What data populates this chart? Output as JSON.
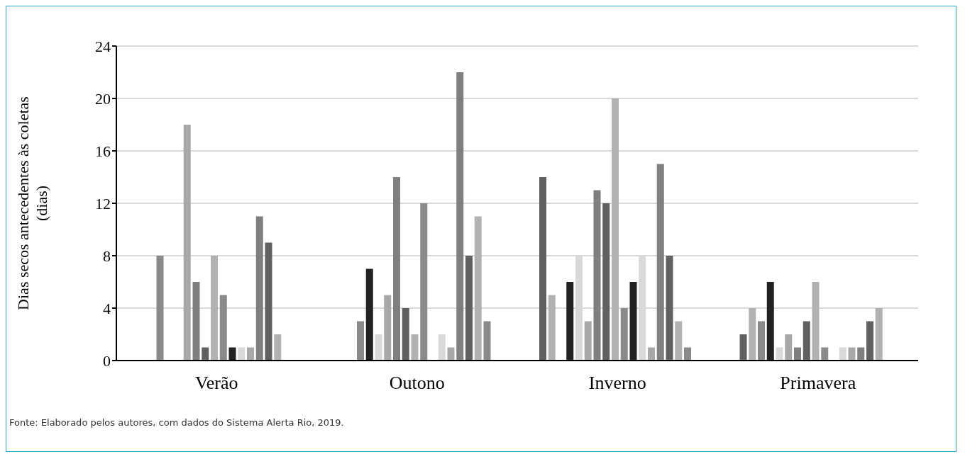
{
  "chart_data": {
    "type": "bar",
    "ylabel": "Dias secos antecedentes às coletas (dias)",
    "categories": [
      "Verão",
      "Outono",
      "Inverno",
      "Primavera"
    ],
    "series": [
      {
        "color": "#606060",
        "values": [
          null,
          null,
          14,
          2
        ]
      },
      {
        "color": "#b2b2b2",
        "values": [
          null,
          null,
          5,
          4
        ]
      },
      {
        "color": "#8a8a8a",
        "values": [
          8,
          3,
          null,
          3
        ]
      },
      {
        "color": "#222222",
        "values": [
          null,
          7,
          6,
          6
        ]
      },
      {
        "color": "#d9d9d9",
        "values": [
          null,
          2,
          8,
          1
        ]
      },
      {
        "color": "#a8a8a8",
        "values": [
          18,
          5,
          3,
          2
        ]
      },
      {
        "color": "#7f7f7f",
        "values": [
          6,
          14,
          13,
          1
        ]
      },
      {
        "color": "#606060",
        "values": [
          1,
          4,
          12,
          3
        ]
      },
      {
        "color": "#b2b2b2",
        "values": [
          8,
          2,
          20,
          6
        ]
      },
      {
        "color": "#8a8a8a",
        "values": [
          5,
          12,
          4,
          1
        ]
      },
      {
        "color": "#222222",
        "values": [
          1,
          null,
          6,
          null
        ]
      },
      {
        "color": "#d9d9d9",
        "values": [
          1,
          2,
          8,
          1
        ]
      },
      {
        "color": "#a8a8a8",
        "values": [
          1,
          1,
          1,
          1
        ]
      },
      {
        "color": "#7f7f7f",
        "values": [
          11,
          22,
          15,
          1
        ]
      },
      {
        "color": "#606060",
        "values": [
          9,
          8,
          8,
          3
        ]
      },
      {
        "color": "#b2b2b2",
        "values": [
          2,
          11,
          3,
          4
        ]
      },
      {
        "color": "#8a8a8a",
        "values": [
          null,
          3,
          1,
          null
        ]
      }
    ],
    "ylim": [
      0,
      24
    ],
    "yticks": [
      0,
      4,
      8,
      12,
      16,
      20,
      24
    ],
    "grid": "y",
    "annotations": [
      "Fonte: Elaborado pelos autores, com dados do Sistema Alerta Rio, 2019."
    ]
  }
}
